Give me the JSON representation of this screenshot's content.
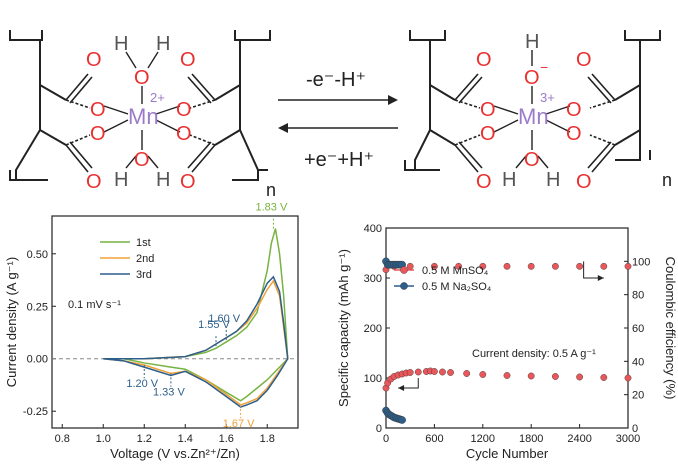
{
  "scheme": {
    "forward_label": "-e⁻-H⁺",
    "reverse_label": "+e⁻+H⁺",
    "left_complex": {
      "metal": "Mn",
      "charge": "2+",
      "oxygen": "O",
      "hydrogen": "H",
      "repeat": "n"
    },
    "right_complex": {
      "metal": "Mn",
      "charge": "3+",
      "oxygen": "O",
      "anion_charge": "−",
      "hydrogen": "H",
      "repeat": "n"
    },
    "colors": {
      "oxygen": "#e8302f",
      "metal": "#9b7bc9",
      "bond": "#222222",
      "hydrogen": "#555555"
    }
  },
  "chart_data": [
    {
      "type": "line",
      "xlabel": "Voltage (V vs.Zn²⁺/Zn)",
      "ylabel": "Current density (A g⁻¹)",
      "xlim": [
        0.75,
        1.95
      ],
      "ylim": [
        -0.33,
        0.68
      ],
      "xticks": [
        "0.8",
        "1.0",
        "1.2",
        "1.4",
        "1.6",
        "1.8"
      ],
      "xtick_values": [
        0.8,
        1.0,
        1.2,
        1.4,
        1.6,
        1.8
      ],
      "yticks": [
        "-0.25",
        "0.00",
        "0.25",
        "0.50"
      ],
      "ytick_values": [
        -0.25,
        0.0,
        0.25,
        0.5
      ],
      "scan_rate": "0.1 mV s⁻¹",
      "legend_position": "top-left",
      "series": [
        {
          "name": "1st",
          "color": "#77b341",
          "x": [
            1.0,
            1.2,
            1.4,
            1.5,
            1.55,
            1.6,
            1.65,
            1.7,
            1.75,
            1.8,
            1.82,
            1.84,
            1.86,
            1.88,
            1.9
          ],
          "y": [
            0.0,
            0.0,
            0.01,
            0.03,
            0.05,
            0.08,
            0.11,
            0.15,
            0.22,
            0.42,
            0.55,
            0.62,
            0.5,
            0.3,
            0.0
          ],
          "x2": [
            1.9,
            1.85,
            1.8,
            1.75,
            1.7,
            1.67,
            1.6,
            1.5,
            1.4,
            1.33,
            1.2,
            1.1,
            1.0
          ],
          "y2": [
            0.0,
            -0.05,
            -0.1,
            -0.14,
            -0.18,
            -0.2,
            -0.16,
            -0.1,
            -0.05,
            -0.04,
            -0.02,
            0.0,
            0.0
          ]
        },
        {
          "name": "2nd",
          "color": "#f0a23a",
          "x": [
            1.0,
            1.2,
            1.4,
            1.5,
            1.55,
            1.6,
            1.65,
            1.7,
            1.75,
            1.8,
            1.83,
            1.86,
            1.88,
            1.9
          ],
          "y": [
            0.0,
            0.0,
            0.01,
            0.04,
            0.07,
            0.1,
            0.13,
            0.17,
            0.24,
            0.33,
            0.37,
            0.3,
            0.15,
            0.0
          ],
          "x2": [
            1.9,
            1.85,
            1.8,
            1.75,
            1.7,
            1.67,
            1.6,
            1.5,
            1.4,
            1.33,
            1.2,
            1.1,
            1.0
          ],
          "y2": [
            0.0,
            -0.07,
            -0.14,
            -0.19,
            -0.21,
            -0.22,
            -0.17,
            -0.1,
            -0.06,
            -0.07,
            -0.03,
            -0.01,
            0.0
          ]
        },
        {
          "name": "3rd",
          "color": "#2d5f8a",
          "x": [
            1.0,
            1.2,
            1.4,
            1.5,
            1.55,
            1.6,
            1.65,
            1.7,
            1.75,
            1.8,
            1.83,
            1.86,
            1.88,
            1.9
          ],
          "y": [
            0.0,
            0.0,
            0.01,
            0.04,
            0.07,
            0.1,
            0.13,
            0.18,
            0.26,
            0.36,
            0.39,
            0.32,
            0.17,
            0.0
          ],
          "x2": [
            1.9,
            1.85,
            1.8,
            1.75,
            1.7,
            1.67,
            1.6,
            1.5,
            1.4,
            1.33,
            1.2,
            1.1,
            1.0
          ],
          "y2": [
            0.0,
            -0.08,
            -0.15,
            -0.2,
            -0.22,
            -0.23,
            -0.18,
            -0.11,
            -0.06,
            -0.08,
            -0.04,
            -0.01,
            0.0
          ]
        }
      ],
      "annotations": [
        {
          "text": "1.83 V",
          "x": 1.83,
          "y": 0.62,
          "color": "#77b341"
        },
        {
          "text": "1.55 V",
          "x": 1.55,
          "y": 0.06,
          "color": "#2d5f8a"
        },
        {
          "text": "1.60 V",
          "x": 1.6,
          "y": 0.09,
          "color": "#2d5f8a"
        },
        {
          "text": "1.20 V",
          "x": 1.2,
          "y": -0.03,
          "color": "#2d5f8a"
        },
        {
          "text": "1.33 V",
          "x": 1.33,
          "y": -0.07,
          "color": "#2d5f8a"
        },
        {
          "text": "1.67 V",
          "x": 1.67,
          "y": -0.22,
          "color": "#f0a23a"
        }
      ]
    },
    {
      "type": "scatter",
      "xlabel": "Cycle Number",
      "ylabel": "Specific capacity (mAh g⁻¹)",
      "ylabel_right": "Coulombic efficiency (%)",
      "xlim": [
        0,
        3000
      ],
      "ylim": [
        0,
        400
      ],
      "ylim_right": [
        0,
        120
      ],
      "xticks": [
        "0",
        "600",
        "1200",
        "1800",
        "2400",
        "3000"
      ],
      "xtick_values": [
        0,
        600,
        1200,
        1800,
        2400,
        3000
      ],
      "yticks": [
        "0",
        "100",
        "200",
        "300",
        "400"
      ],
      "ytick_values": [
        0,
        100,
        200,
        300,
        400
      ],
      "yticks_right": [
        "0",
        "20",
        "40",
        "60",
        "80",
        "100"
      ],
      "ytick_values_right": [
        0,
        20,
        40,
        60,
        80,
        100
      ],
      "annotation": "Current density: 0.5 A g⁻¹",
      "legend_position": "upper-left",
      "series": [
        {
          "name": "0.5 M MnSO₄",
          "color": "#e8575a",
          "capacity_x": [
            0,
            20,
            60,
            100,
            150,
            200,
            250,
            300,
            400,
            500,
            550,
            600,
            700,
            800,
            1000,
            1200,
            1500,
            1800,
            2100,
            2400,
            2700,
            3000
          ],
          "capacity_y": [
            80,
            90,
            98,
            103,
            106,
            108,
            110,
            111,
            112,
            113,
            114,
            113,
            112,
            111,
            109,
            107,
            105,
            104,
            103,
            102,
            101,
            100
          ],
          "ce_x": [
            0,
            100,
            300,
            600,
            900,
            1200,
            1500,
            1800,
            2100,
            2400,
            2700,
            3000
          ],
          "ce_y": [
            95,
            97,
            97,
            97,
            97,
            97,
            97,
            97,
            97,
            97,
            97,
            97
          ]
        },
        {
          "name": "0.5 M Na₂SO₄",
          "color": "#2d5f8a",
          "capacity_x": [
            0,
            20,
            40,
            60,
            80,
            100,
            120,
            140,
            160,
            180,
            200
          ],
          "capacity_y": [
            35,
            30,
            27,
            25,
            23,
            21,
            20,
            19,
            18,
            17,
            16
          ],
          "ce_x": [
            0,
            20,
            40,
            60,
            80,
            100,
            120,
            140,
            160,
            180,
            200
          ],
          "ce_y": [
            100,
            98,
            98,
            98,
            98,
            98,
            98,
            98,
            98,
            98,
            98
          ]
        }
      ]
    }
  ]
}
